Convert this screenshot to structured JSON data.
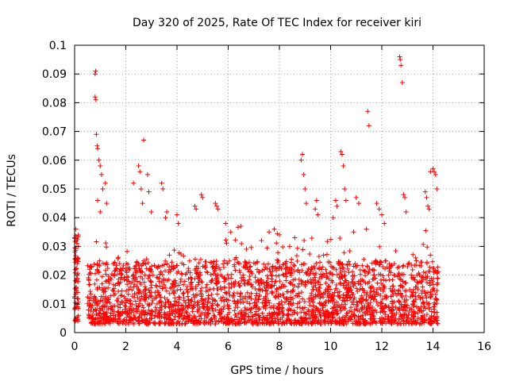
{
  "chart_data": {
    "type": "scatter",
    "title": "Day 320 of 2025, Rate Of TEC Index for receiver kiri",
    "xlabel": "GPS time / hours",
    "ylabel": "ROTI / TECUs",
    "xlim": [
      0,
      16
    ],
    "ylim": [
      0,
      0.1
    ],
    "xticks": [
      0,
      2,
      4,
      6,
      8,
      10,
      12,
      14,
      16
    ],
    "yticks": [
      0,
      0.01,
      0.02,
      0.03,
      0.04,
      0.05,
      0.06,
      0.07,
      0.08,
      0.09,
      0.1
    ],
    "grid": true,
    "marker": "+",
    "color": "#ff0000",
    "data_span_hours": [
      0,
      14.2
    ],
    "series": [
      {
        "name": "ROTI",
        "description": "dense cloud of ROTI samples, mostly 0.005-0.025 TECU/s",
        "points": [
          [
            0.0,
            0.033
          ],
          [
            0.0,
            0.012
          ],
          [
            0.02,
            0.028
          ],
          [
            0.03,
            0.004
          ],
          [
            0.05,
            0.036
          ],
          [
            0.05,
            0.018
          ],
          [
            0.08,
            0.009
          ],
          [
            0.1,
            0.024
          ],
          [
            0.12,
            0.014
          ],
          [
            0.15,
            0.03
          ],
          [
            0.8,
            0.09
          ],
          [
            0.82,
            0.091
          ],
          [
            0.8,
            0.082
          ],
          [
            0.83,
            0.081
          ],
          [
            0.85,
            0.069
          ],
          [
            0.88,
            0.065
          ],
          [
            0.9,
            0.064
          ],
          [
            0.95,
            0.06
          ],
          [
            1.0,
            0.058
          ],
          [
            1.05,
            0.055
          ],
          [
            1.1,
            0.05
          ],
          [
            1.2,
            0.052
          ],
          [
            1.25,
            0.045
          ],
          [
            0.9,
            0.046
          ],
          [
            1.0,
            0.042
          ],
          [
            2.3,
            0.052
          ],
          [
            2.5,
            0.058
          ],
          [
            2.55,
            0.056
          ],
          [
            2.6,
            0.05
          ],
          [
            2.65,
            0.045
          ],
          [
            2.7,
            0.067
          ],
          [
            2.85,
            0.055
          ],
          [
            2.9,
            0.049
          ],
          [
            3.0,
            0.042
          ],
          [
            3.4,
            0.052
          ],
          [
            3.45,
            0.05
          ],
          [
            3.55,
            0.04
          ],
          [
            3.6,
            0.042
          ],
          [
            4.0,
            0.041
          ],
          [
            4.05,
            0.038
          ],
          [
            4.7,
            0.044
          ],
          [
            4.75,
            0.043
          ],
          [
            4.95,
            0.048
          ],
          [
            5.0,
            0.047
          ],
          [
            5.5,
            0.045
          ],
          [
            5.55,
            0.044
          ],
          [
            5.6,
            0.043
          ],
          [
            5.9,
            0.038
          ],
          [
            6.1,
            0.035
          ],
          [
            6.5,
            0.037
          ],
          [
            7.3,
            0.032
          ],
          [
            7.6,
            0.035
          ],
          [
            7.8,
            0.036
          ],
          [
            8.0,
            0.034
          ],
          [
            8.4,
            0.03
          ],
          [
            8.6,
            0.033
          ],
          [
            8.85,
            0.06
          ],
          [
            8.9,
            0.062
          ],
          [
            8.95,
            0.055
          ],
          [
            9.0,
            0.05
          ],
          [
            9.05,
            0.045
          ],
          [
            9.4,
            0.043
          ],
          [
            9.45,
            0.046
          ],
          [
            9.5,
            0.041
          ],
          [
            10.1,
            0.04
          ],
          [
            10.2,
            0.046
          ],
          [
            10.25,
            0.044
          ],
          [
            10.4,
            0.063
          ],
          [
            10.45,
            0.062
          ],
          [
            10.5,
            0.058
          ],
          [
            10.55,
            0.05
          ],
          [
            10.6,
            0.046
          ],
          [
            10.9,
            0.035
          ],
          [
            11.0,
            0.047
          ],
          [
            11.1,
            0.045
          ],
          [
            11.4,
            0.036
          ],
          [
            11.45,
            0.077
          ],
          [
            11.5,
            0.072
          ],
          [
            11.8,
            0.045
          ],
          [
            11.9,
            0.043
          ],
          [
            12.0,
            0.041
          ],
          [
            12.1,
            0.038
          ],
          [
            12.7,
            0.096
          ],
          [
            12.72,
            0.095
          ],
          [
            12.75,
            0.093
          ],
          [
            12.8,
            0.087
          ],
          [
            12.85,
            0.048
          ],
          [
            12.9,
            0.047
          ],
          [
            12.95,
            0.042
          ],
          [
            13.7,
            0.049
          ],
          [
            13.75,
            0.047
          ],
          [
            13.8,
            0.044
          ],
          [
            13.85,
            0.043
          ],
          [
            13.9,
            0.056
          ],
          [
            14.0,
            0.057
          ],
          [
            14.05,
            0.056
          ],
          [
            14.1,
            0.055
          ],
          [
            14.15,
            0.05
          ]
        ],
        "baseline_band": {
          "x_range": [
            0.5,
            14.2
          ],
          "y_low": 0.003,
          "y_typical_high": 0.025
        }
      }
    ]
  }
}
